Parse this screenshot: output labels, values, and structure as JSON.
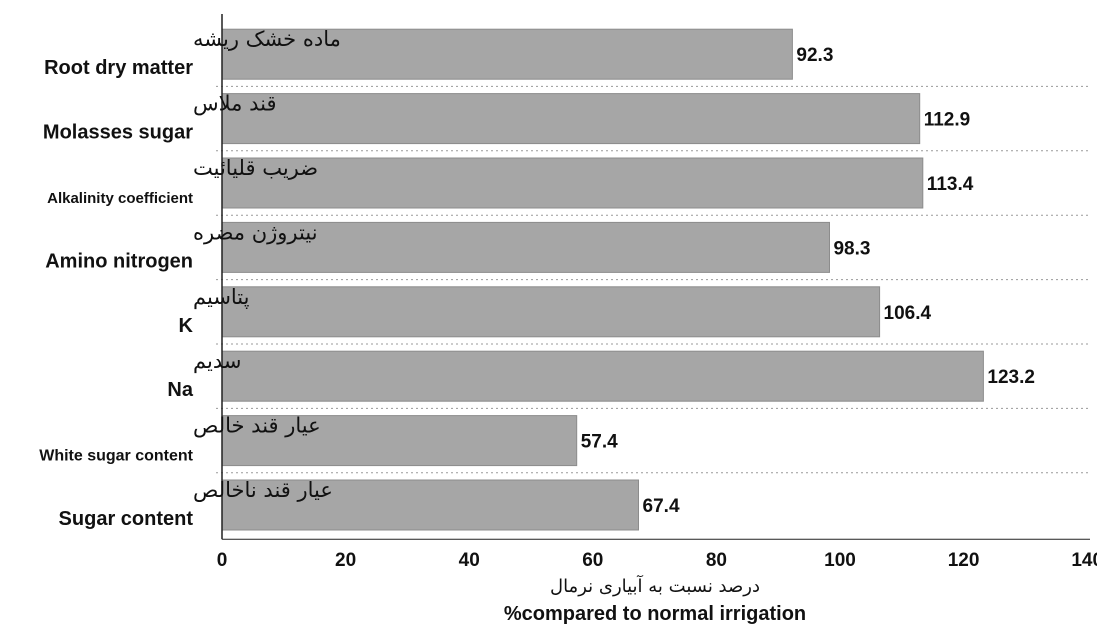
{
  "chart_data": {
    "type": "bar",
    "orientation": "horizontal",
    "categories": [
      {
        "fa": "ماده خشک ریشه",
        "en": "Root dry matter"
      },
      {
        "fa": "قند ملاس",
        "en": "Molasses sugar"
      },
      {
        "fa": "ضریب قلیائیت",
        "en": "Alkalinity coefficient"
      },
      {
        "fa": "نیتروژن مضره",
        "en": "Amino nitrogen"
      },
      {
        "fa": "پتاسیم",
        "en": "K"
      },
      {
        "fa": "سدیم",
        "en": "Na"
      },
      {
        "fa": "عیار قند خالص",
        "en": "White sugar content"
      },
      {
        "fa": "عیار قند ناخالص",
        "en": "Sugar content"
      }
    ],
    "values": [
      92.3,
      112.9,
      113.4,
      98.3,
      106.4,
      123.2,
      57.4,
      67.4
    ],
    "value_labels": [
      "92.3",
      "112.9",
      "113.4",
      "98.3",
      "106.4",
      "123.2",
      "57.4",
      "67.4"
    ],
    "xlim": [
      0,
      140
    ],
    "xticks": [
      "0",
      "20",
      "40",
      "60",
      "80",
      "100",
      "120",
      "140"
    ],
    "xlabel_fa": "درصد نسبت به آبیاری نرمال",
    "xlabel_en": "%compared to normal irrigation",
    "grid": "dotted separators between categories",
    "colors": {
      "bar": "#a6a6a6",
      "bar_edge": "#8c8c8c",
      "axis": "#222222",
      "grid": "#9a9a9a"
    }
  }
}
